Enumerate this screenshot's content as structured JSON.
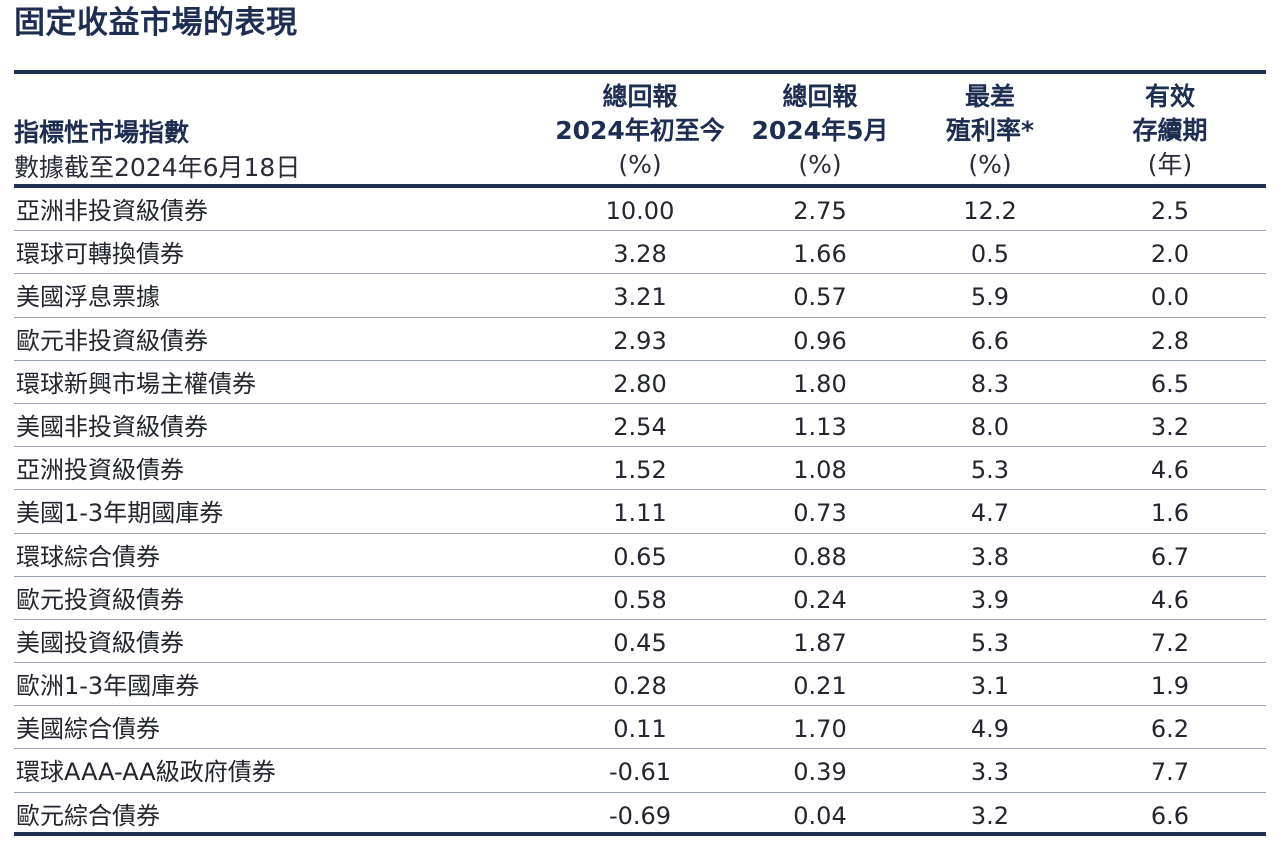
{
  "title": "固定收益市場的表現",
  "header": {
    "index_title": "指標性市場指數",
    "index_sub": "數據截至2024年6月18日",
    "columns": [
      {
        "line1": "總回報",
        "line2": "2024年初至今",
        "unit": "(%)"
      },
      {
        "line1": "總回報",
        "line2": "2024年5月",
        "unit": "(%)"
      },
      {
        "line1": "最差",
        "line2": "殖利率*",
        "unit": "(%)"
      },
      {
        "line1": "有效",
        "line2": "存續期",
        "unit": "(年)"
      }
    ]
  },
  "rows": [
    {
      "name": "亞洲非投資級債券",
      "ytd": "10.00",
      "may": "2.75",
      "ytw": "12.2",
      "dur": "2.5"
    },
    {
      "name": "環球可轉換債券",
      "ytd": "3.28",
      "may": "1.66",
      "ytw": "0.5",
      "dur": "2.0"
    },
    {
      "name": "美國浮息票據",
      "ytd": "3.21",
      "may": "0.57",
      "ytw": "5.9",
      "dur": "0.0"
    },
    {
      "name": "歐元非投資級債券",
      "ytd": "2.93",
      "may": "0.96",
      "ytw": "6.6",
      "dur": "2.8"
    },
    {
      "name": "環球新興市場主權債券",
      "ytd": "2.80",
      "may": "1.80",
      "ytw": "8.3",
      "dur": "6.5"
    },
    {
      "name": "美國非投資級債券",
      "ytd": "2.54",
      "may": "1.13",
      "ytw": "8.0",
      "dur": "3.2"
    },
    {
      "name": "亞洲投資級債券",
      "ytd": "1.52",
      "may": "1.08",
      "ytw": "5.3",
      "dur": "4.6"
    },
    {
      "name": "美國1-3年期國庫券",
      "ytd": "1.11",
      "may": "0.73",
      "ytw": "4.7",
      "dur": "1.6"
    },
    {
      "name": "環球綜合債券",
      "ytd": "0.65",
      "may": "0.88",
      "ytw": "3.8",
      "dur": "6.7"
    },
    {
      "name": "歐元投資級債券",
      "ytd": "0.58",
      "may": "0.24",
      "ytw": "3.9",
      "dur": "4.6"
    },
    {
      "name": "美國投資級債券",
      "ytd": "0.45",
      "may": "1.87",
      "ytw": "5.3",
      "dur": "7.2"
    },
    {
      "name": "歐洲1-3年國庫券",
      "ytd": "0.28",
      "may": "0.21",
      "ytw": "3.1",
      "dur": "1.9"
    },
    {
      "name": "美國綜合債券",
      "ytd": "0.11",
      "may": "1.70",
      "ytw": "4.9",
      "dur": "6.2"
    },
    {
      "name": "環球AAA-AA級政府債券",
      "ytd": "-0.61",
      "may": "0.39",
      "ytw": "3.3",
      "dur": "7.7"
    },
    {
      "name": "歐元綜合債券",
      "ytd": "-0.69",
      "may": "0.04",
      "ytw": "3.2",
      "dur": "6.6"
    }
  ],
  "colors": {
    "navy": "#1e2d52",
    "row_rule": "#9aa3b8"
  }
}
